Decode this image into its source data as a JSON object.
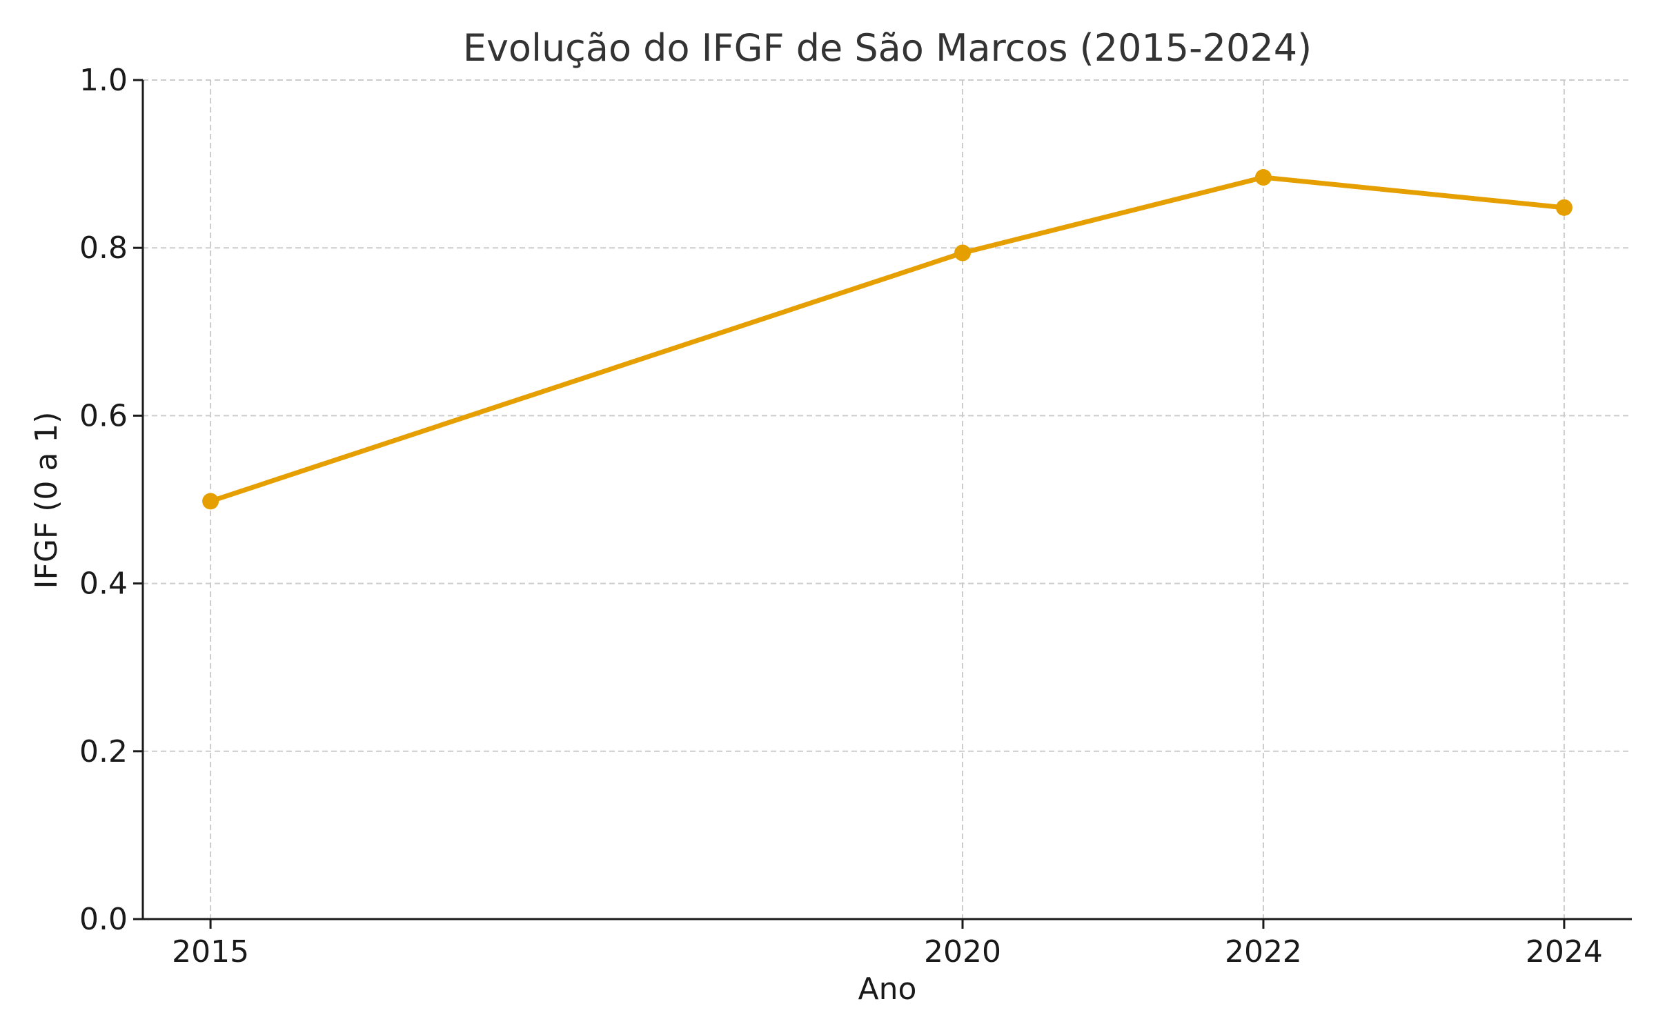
{
  "chart_data": {
    "type": "line",
    "title": "Evolução do IFGF de São Marcos (2015-2024)",
    "xlabel": "Ano",
    "ylabel": "IFGF (0 a 1)",
    "x": [
      2015,
      2020,
      2022,
      2024
    ],
    "xlim": [
      2014.55,
      2024.45
    ],
    "ylim": [
      0,
      1
    ],
    "y_ticks": [
      0.0,
      0.2,
      0.4,
      0.6,
      0.8,
      1.0
    ],
    "x_tick_labels": [
      "2015",
      "2020",
      "2022",
      "2024"
    ],
    "y_tick_labels": [
      "0.0",
      "0.2",
      "0.4",
      "0.6",
      "0.8",
      "1.0"
    ],
    "grid": true,
    "series": [
      {
        "values": [
          0.498,
          0.794,
          0.884,
          0.848
        ],
        "color": "#E69F00",
        "marker": "circle"
      }
    ]
  }
}
